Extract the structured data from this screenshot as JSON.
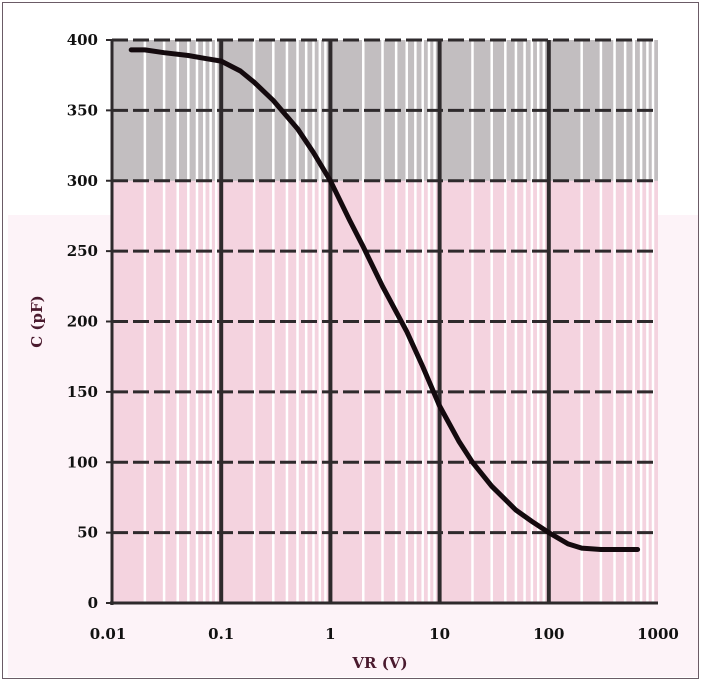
{
  "chart_data": {
    "type": "line",
    "title": "",
    "xlabel": "VR (V)",
    "ylabel": "C (pF)",
    "x_scale": "log",
    "xlim": [
      0.01,
      1000
    ],
    "ylim": [
      0,
      400
    ],
    "grid": true,
    "legend": "none",
    "x_tick_labels": [
      "0.01",
      "0.1",
      "1",
      "10",
      "100",
      "1000"
    ],
    "x_tick_values": [
      0.01,
      0.1,
      1,
      10,
      100,
      1000
    ],
    "y_tick_labels": [
      "0",
      "50",
      "100",
      "150",
      "200",
      "250",
      "300",
      "350",
      "400"
    ],
    "y_tick_values": [
      0,
      50,
      100,
      150,
      200,
      250,
      300,
      350,
      400
    ],
    "series": [
      {
        "x": [
          0.015,
          0.02,
          0.03,
          0.05,
          0.07,
          0.1,
          0.15,
          0.2,
          0.3,
          0.5,
          0.7,
          1,
          1.5,
          2,
          3,
          5,
          7,
          10,
          15,
          20,
          30,
          50,
          70,
          100,
          150,
          200,
          300,
          500,
          650
        ],
        "y": [
          393,
          393,
          391,
          389,
          387,
          385,
          378,
          370,
          357,
          337,
          320,
          300,
          272,
          253,
          225,
          193,
          168,
          140,
          115,
          100,
          83,
          66,
          58,
          50,
          42,
          39,
          38,
          38,
          38
        ]
      }
    ],
    "colors": {
      "line": "#140a0e",
      "plot_pink": "#f4d3df",
      "plot_gray": "#c2bec0",
      "margin_pink": "#fdf3f8",
      "grid_major": "#2e2a2c",
      "grid_minor": "#ffffff",
      "axis_title": "#4a1a2e"
    }
  }
}
